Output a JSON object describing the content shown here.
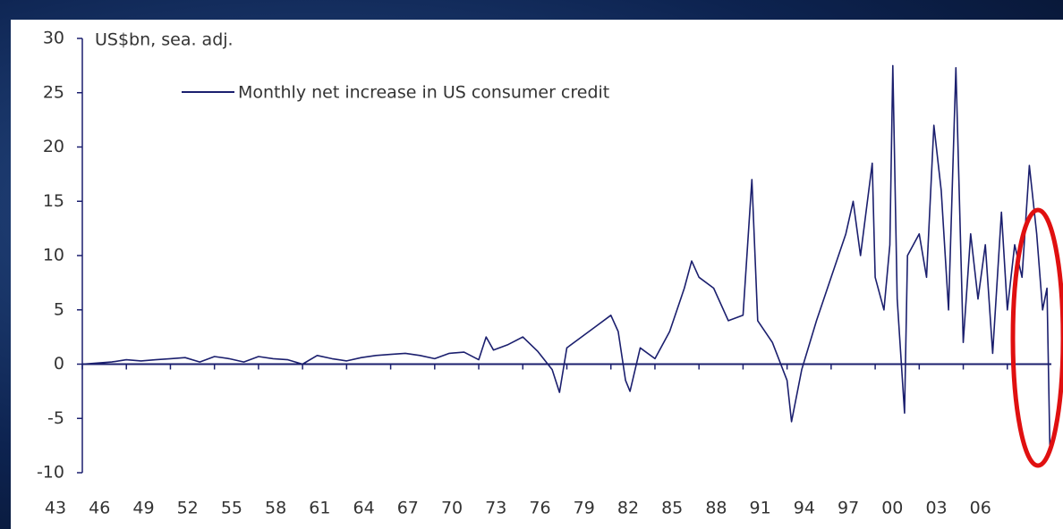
{
  "chart_data": {
    "type": "line",
    "title": "US$bn, sea. adj.",
    "series": [
      {
        "name": "Monthly net increase in US consumer credit",
        "color": "#1b1f6e",
        "x": [
          1943,
          1944,
          1945,
          1946,
          1947,
          1948,
          1949,
          1950,
          1951,
          1952,
          1953,
          1954,
          1955,
          1956,
          1957,
          1958,
          1959,
          1960,
          1961,
          1962,
          1963,
          1964,
          1965,
          1966,
          1967,
          1968,
          1969,
          1970,
          1970.5,
          1971,
          1972,
          1973,
          1974,
          1975,
          1975.5,
          1976,
          1977,
          1978,
          1979,
          1979.5,
          1980,
          1980.3,
          1981,
          1982,
          1983,
          1984,
          1984.5,
          1985,
          1986,
          1987,
          1988,
          1988.6,
          1989,
          1990,
          1991,
          1991.3,
          1992,
          1993,
          1994,
          1995,
          1995.5,
          1996,
          1996.8,
          1997,
          1997.6,
          1998,
          1998.2,
          1998.5,
          1999,
          1999.2,
          2000,
          2000.5,
          2001,
          2001.5,
          2002,
          2002.5,
          2003,
          2003.5,
          2004,
          2004.5,
          2005,
          2005.6,
          2006,
          2006.5,
          2007,
          2007.5,
          2008,
          2008.4,
          2008.7,
          2008.9
        ],
        "values": [
          0,
          0.1,
          0.2,
          0.4,
          0.3,
          0.4,
          0.5,
          0.6,
          0.2,
          0.7,
          0.5,
          0.2,
          0.7,
          0.5,
          0.4,
          0,
          0.8,
          0.5,
          0.3,
          0.6,
          0.8,
          0.9,
          1,
          0.8,
          0.5,
          1,
          1.1,
          0.4,
          2.5,
          1.3,
          1.8,
          2.5,
          1.2,
          -0.5,
          -2.6,
          1.5,
          2.5,
          3.5,
          4.5,
          3,
          -1.5,
          -2.5,
          1.5,
          0.5,
          3,
          7,
          9.5,
          8,
          7,
          4,
          4.5,
          17,
          4,
          2,
          -1.5,
          -5.3,
          -0.5,
          4,
          8,
          12,
          15,
          10,
          18.5,
          8,
          5,
          11,
          27.5,
          6,
          -4.5,
          10,
          12,
          8,
          22,
          16,
          5,
          27.3,
          2,
          12,
          6,
          11,
          1,
          14,
          5,
          11,
          8,
          18.3,
          12,
          5,
          7,
          -8
        ]
      }
    ],
    "xlim": [
      1943,
      2009
    ],
    "xticks": [
      {
        "value": 1943,
        "label": "43"
      },
      {
        "value": 1946,
        "label": "46"
      },
      {
        "value": 1949,
        "label": "49"
      },
      {
        "value": 1952,
        "label": "52"
      },
      {
        "value": 1955,
        "label": "55"
      },
      {
        "value": 1958,
        "label": "58"
      },
      {
        "value": 1961,
        "label": "61"
      },
      {
        "value": 1964,
        "label": "64"
      },
      {
        "value": 1967,
        "label": "67"
      },
      {
        "value": 1970,
        "label": "70"
      },
      {
        "value": 1973,
        "label": "73"
      },
      {
        "value": 1976,
        "label": "76"
      },
      {
        "value": 1979,
        "label": "79"
      },
      {
        "value": 1982,
        "label": "82"
      },
      {
        "value": 1985,
        "label": "85"
      },
      {
        "value": 1988,
        "label": "88"
      },
      {
        "value": 1991,
        "label": "91"
      },
      {
        "value": 1994,
        "label": "94"
      },
      {
        "value": 1997,
        "label": "97"
      },
      {
        "value": 2000,
        "label": "00"
      },
      {
        "value": 2003,
        "label": "03"
      },
      {
        "value": 2006,
        "label": "06"
      }
    ],
    "ylim": [
      -10,
      30
    ],
    "yticks": [
      -10,
      -5,
      0,
      5,
      10,
      15,
      20,
      25,
      30
    ],
    "grid": false,
    "legend": "top-left"
  }
}
